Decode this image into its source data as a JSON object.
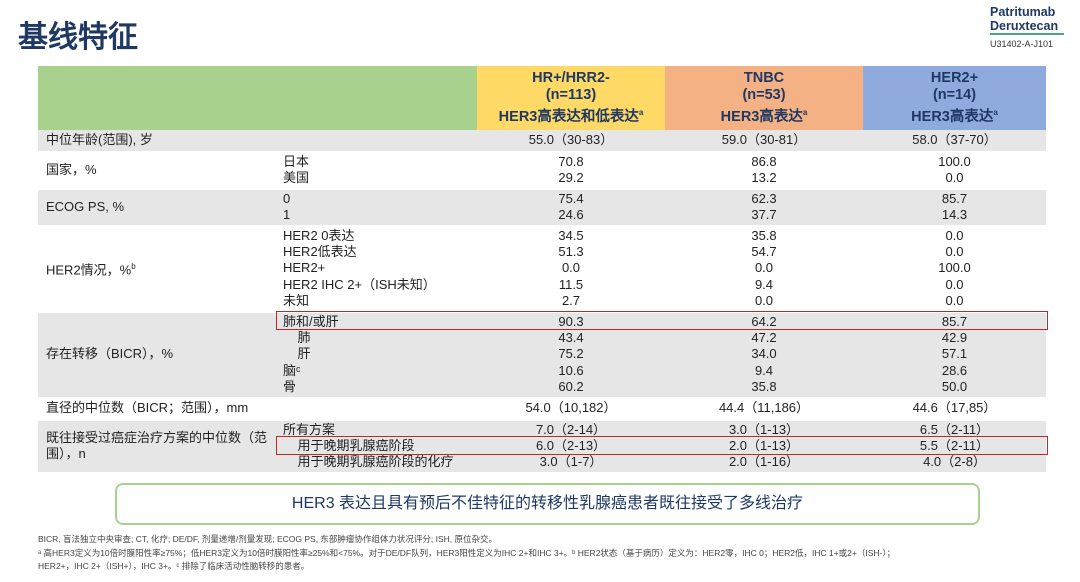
{
  "header": {
    "title": "基线特征",
    "brand_line1": "Patritumab",
    "brand_line2": "Deruxtecan",
    "brand_code": "U31402-A-J101"
  },
  "colors": {
    "label_header": "#a9d18e",
    "col1": "#ffd966",
    "col2": "#f4b183",
    "col3": "#8faadc",
    "highlight": "#c0262d"
  },
  "columns": [
    {
      "l1": "HR+/HRR2-",
      "l2": "(n=113)",
      "l3": "HER3高表达和低表达",
      "sup": "a"
    },
    {
      "l1": "TNBC",
      "l2": "(n=53)",
      "l3": "HER3高表达",
      "sup": "a"
    },
    {
      "l1": "HER2+",
      "l2": "(n=14)",
      "l3": "HER3高表达",
      "sup": "a"
    }
  ],
  "rows": [
    {
      "label": "中位年龄(范围), 岁",
      "gray": true,
      "subs": [
        ""
      ],
      "vals": [
        [
          "55.0（30-83）"
        ],
        [
          "59.0（30-81）"
        ],
        [
          "58.0（37-70）"
        ]
      ]
    },
    {
      "label": "国家，%",
      "subs": [
        "日本",
        "美国"
      ],
      "vals": [
        [
          "70.8",
          "29.2"
        ],
        [
          "86.8",
          "13.2"
        ],
        [
          "100.0",
          "0.0"
        ]
      ]
    },
    {
      "label": "ECOG PS, %",
      "gray": true,
      "subs": [
        "0",
        "1"
      ],
      "vals": [
        [
          "75.4",
          "24.6"
        ],
        [
          "62.3",
          "37.7"
        ],
        [
          "85.7",
          "14.3"
        ]
      ]
    },
    {
      "label": "HER2情况，%",
      "label_sup": "b",
      "subs": [
        "HER2 0表达",
        "HER2低表达",
        "HER2+",
        "HER2 IHC 2+（ISH未知）",
        "未知"
      ],
      "vals": [
        [
          "34.5",
          "51.3",
          "0.0",
          "11.5",
          "2.7"
        ],
        [
          "35.8",
          "54.7",
          "0.0",
          "9.4",
          "0.0"
        ],
        [
          "0.0",
          "0.0",
          "100.0",
          "0.0",
          "0.0"
        ]
      ]
    },
    {
      "label": "存在转移（BICR），%",
      "gray": true,
      "subs": [
        "肺和/或肝",
        "    肺",
        "    肝",
        "脑ᶜ",
        "骨"
      ],
      "vals": [
        [
          "90.3",
          "43.4",
          "75.2",
          "10.6",
          "60.2"
        ],
        [
          "64.2",
          "47.2",
          "34.0",
          "9.4",
          "35.8"
        ],
        [
          "85.7",
          "42.9",
          "57.1",
          "28.6",
          "50.0"
        ]
      ]
    },
    {
      "label": "直径的中位数（BICR；范围），mm",
      "subs": [
        ""
      ],
      "vals": [
        [
          "54.0（10,182）"
        ],
        [
          "44.4（11,186）"
        ],
        [
          "44.6（17,85）"
        ]
      ]
    },
    {
      "label": "既往接受过癌症治疗方案的中位数（范围），n",
      "gray": true,
      "subs": [
        "所有方案",
        "    用于晚期乳腺癌阶段",
        "    用于晚期乳腺癌阶段的化疗"
      ],
      "vals": [
        [
          "7.0（2-14）",
          "6.0（2-13）",
          "3.0（1-7）"
        ],
        [
          "3.0（1-13）",
          "2.0（1-13）",
          "2.0（1-16）"
        ],
        [
          "6.5（2-11）",
          "5.5（2-11）",
          "4.0（2-8）"
        ]
      ]
    }
  ],
  "callout": "HER3 表达且具有预后不佳特征的转移性乳腺癌患者既往接受了多线治疗",
  "footnotes": [
    "BICR, 盲法独立中央审查; CT, 化疗; DE/DF, 剂量递增/剂量发现; ECOG PS, 东部肿瘤协作组体力状况评分; ISH, 原位杂交。",
    "ᵃ 高HER3定义为10倍时膜阳性率≥75%；低HER3定义为10倍时膜阳性率≥25%和<75%。对于DE/DF队列，HER3阳性定义为IHC 2+和IHC 3+。ᵇ HER2状态（基于病历）定义为：HER2零，IHC 0；HER2低，IHC 1+或2+（ISH-）；",
    "HER2+，IHC 2+（ISH+），IHC 3+。ᶜ 排除了临床活动性脑转移的患者。"
  ]
}
